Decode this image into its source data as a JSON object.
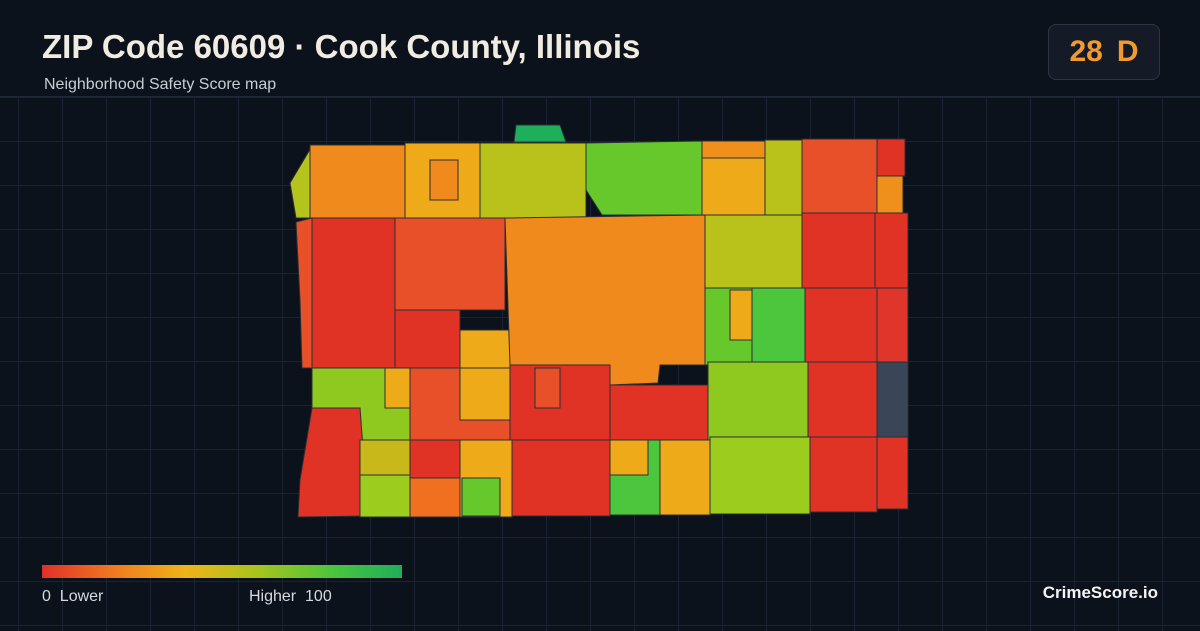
{
  "header": {
    "title": "ZIP Code 60609 · Cook County, Illinois",
    "subtitle": "Neighborhood Safety Score map"
  },
  "score": {
    "value": 28,
    "grade": "D"
  },
  "legend": {
    "min": 0,
    "min_label": "Lower",
    "max_label": "Higher",
    "max": 100
  },
  "brand": "CrimeScore.io"
}
